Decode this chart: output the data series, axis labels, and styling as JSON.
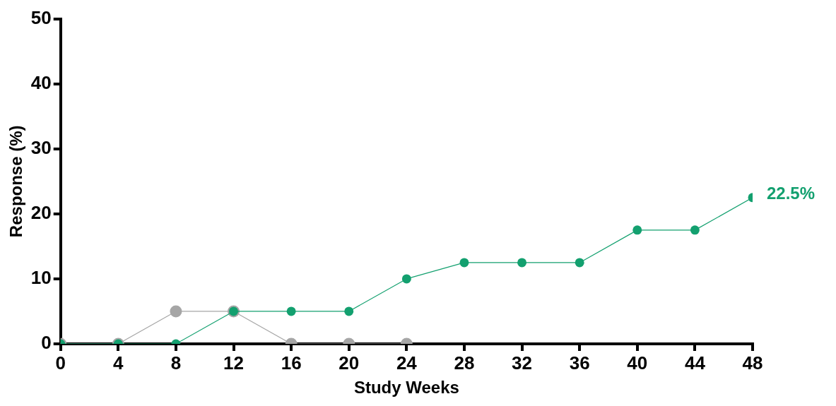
{
  "chart_data": {
    "type": "line",
    "xlabel": "Study Weeks",
    "ylabel": "Response (%)",
    "xlim": [
      0,
      48
    ],
    "xticks": [
      0,
      4,
      8,
      12,
      16,
      20,
      24,
      28,
      32,
      36,
      40,
      44,
      48
    ],
    "ylim": [
      0,
      50
    ],
    "yticks": [
      0,
      10,
      20,
      30,
      40,
      50
    ],
    "grid": false,
    "legend": false,
    "marker": "circle",
    "line_style": "solid",
    "series": [
      {
        "color": "#a6a6a6",
        "x": [
          0,
          4,
          8,
          12,
          16,
          20,
          24
        ],
        "values": [
          0,
          0,
          5,
          5,
          0,
          0,
          0
        ]
      },
      {
        "color": "#13a06f",
        "x": [
          0,
          4,
          8,
          12,
          16,
          20,
          24,
          28,
          32,
          36,
          40,
          44,
          48
        ],
        "values": [
          0,
          0,
          0,
          5,
          5,
          5,
          10,
          12.5,
          12.5,
          12.5,
          17.5,
          17.5,
          22.5
        ]
      }
    ],
    "annotations": [
      {
        "text": "22.5%",
        "x": 48,
        "y": 22.5
      }
    ]
  }
}
